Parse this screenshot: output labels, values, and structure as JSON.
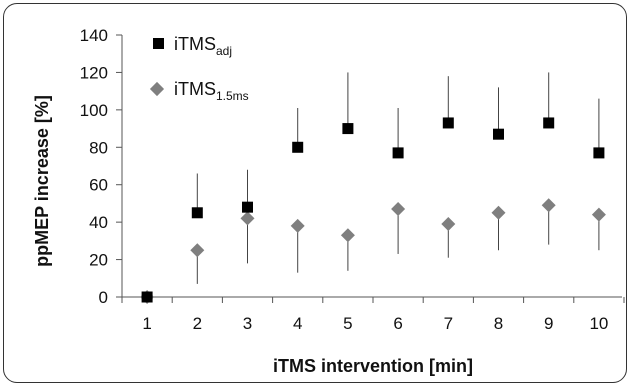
{
  "chart_data": {
    "type": "scatter",
    "xlabel": "iTMS intervention [min]",
    "ylabel": "ppMEP increase [%]",
    "x": [
      1,
      2,
      3,
      4,
      5,
      6,
      7,
      8,
      9,
      10
    ],
    "ylim": [
      0,
      140
    ],
    "yticks": [
      0,
      20,
      40,
      60,
      80,
      100,
      120,
      140
    ],
    "grid": false,
    "legend_position": "top-left",
    "series": [
      {
        "name_main": "iTMS",
        "name_sub": "adj",
        "marker": "square",
        "color": "#000000",
        "values": [
          0,
          45,
          48,
          80,
          90,
          77,
          93,
          87,
          93,
          77
        ],
        "error_upper": [
          0,
          21,
          20,
          21,
          30,
          24,
          25,
          25,
          27,
          29
        ]
      },
      {
        "name_main": "iTMS",
        "name_sub": "1.5ms",
        "marker": "diamond",
        "color": "#7f7f7f",
        "values": [
          0,
          25,
          42,
          38,
          33,
          47,
          39,
          45,
          49,
          44
        ],
        "error_lower": [
          0,
          18,
          24,
          25,
          19,
          24,
          18,
          20,
          21,
          19
        ]
      }
    ]
  }
}
